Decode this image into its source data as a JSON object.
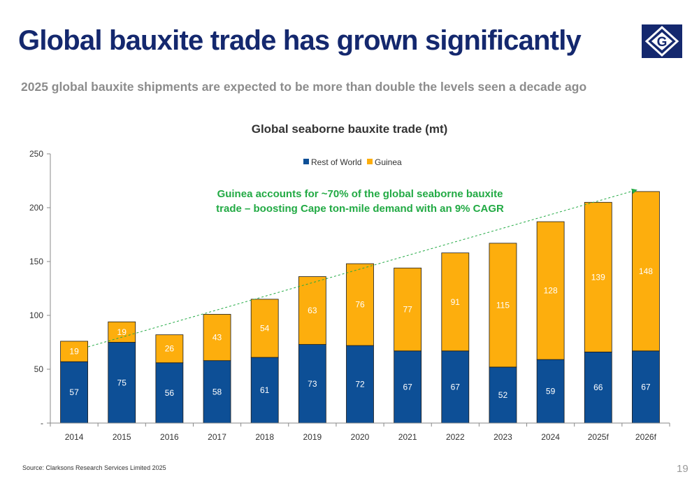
{
  "header": {
    "title": "Global bauxite trade has grown significantly",
    "subtitle": "2025 global bauxite shipments are expected to be more than double the levels seen a decade ago"
  },
  "logo": {
    "letter": "G",
    "icon": "company-logo-diamond-g"
  },
  "footer": {
    "source": "Source: Clarksons Research Services Limited 2025",
    "page_number": "19"
  },
  "colors": {
    "title": "#14286e",
    "rest_of_world": "#0d4f96",
    "guinea": "#fdae0d",
    "annotation": "#22aa44"
  },
  "chart_data": {
    "type": "bar",
    "stacked": true,
    "title": "Global seaborne bauxite trade (mt)",
    "categories": [
      "2014",
      "2015",
      "2016",
      "2017",
      "2018",
      "2019",
      "2020",
      "2021",
      "2022",
      "2023",
      "2024",
      "2025f",
      "2026f"
    ],
    "series": [
      {
        "name": "Rest of World",
        "color": "#0d4f96",
        "values": [
          57,
          75,
          56,
          58,
          61,
          73,
          72,
          67,
          67,
          52,
          59,
          66,
          67
        ]
      },
      {
        "name": "Guinea",
        "color": "#fdae0d",
        "values": [
          19,
          19,
          26,
          43,
          54,
          63,
          76,
          77,
          91,
          115,
          128,
          139,
          148
        ]
      }
    ],
    "y_ticks": [
      "-",
      "50",
      "100",
      "150",
      "200",
      "250"
    ],
    "ylim": [
      0,
      250
    ],
    "legend_position": "top",
    "annotation": {
      "line1": "Guinea accounts for ~70% of the global seaborne bauxite",
      "line2": "trade –  boosting Cape ton-mile demand with an 9% CAGR",
      "trend": "dashed green arrow rising from 2014 to 2026f"
    }
  }
}
